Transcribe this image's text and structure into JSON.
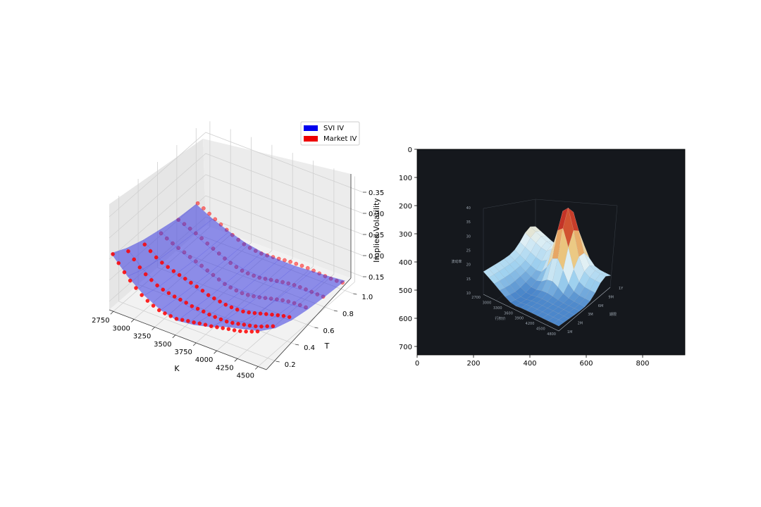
{
  "chart_data": [
    {
      "type": "surface3d",
      "xlabel": "K",
      "ylabel": "T",
      "zlabel": "Implied Volatility",
      "x_ticks": [
        "2750",
        "3000",
        "3250",
        "3500",
        "3750",
        "4000",
        "4250",
        "4500"
      ],
      "y_ticks": [
        "0.2",
        "0.4",
        "0.6",
        "0.8",
        "1.0"
      ],
      "z_ticks": [
        "0.15",
        "0.20",
        "0.25",
        "0.30",
        "0.35"
      ],
      "xlim": [
        2700,
        4600
      ],
      "ylim": [
        0.1,
        1.1
      ],
      "zlim": [
        0.13,
        0.38
      ],
      "legend": {
        "placement": "top-right",
        "entries": [
          {
            "label": "SVI IV",
            "color": "#0000ee"
          },
          {
            "label": "Market IV",
            "color": "#ee0000"
          }
        ]
      },
      "maturities": [
        0.12,
        0.28,
        0.45,
        0.62,
        0.8,
        1.0
      ],
      "strikes": [
        2700,
        2900,
        3100,
        3300,
        3500,
        3700,
        3900,
        4100,
        4300,
        4500
      ],
      "surface": {
        "name": "SVI IV",
        "color": "#3838e0",
        "iv": [
          [
            0.26,
            0.22,
            0.19,
            0.17,
            0.16,
            0.165,
            0.175,
            0.19,
            0.2,
            0.21
          ],
          [
            0.24,
            0.205,
            0.18,
            0.165,
            0.155,
            0.155,
            0.16,
            0.17,
            0.175,
            0.185
          ],
          [
            0.225,
            0.195,
            0.175,
            0.16,
            0.15,
            0.15,
            0.152,
            0.158,
            0.163,
            0.17
          ],
          [
            0.215,
            0.19,
            0.17,
            0.157,
            0.148,
            0.146,
            0.148,
            0.152,
            0.157,
            0.162
          ],
          [
            0.205,
            0.185,
            0.167,
            0.155,
            0.147,
            0.144,
            0.145,
            0.148,
            0.152,
            0.157
          ],
          [
            0.2,
            0.18,
            0.165,
            0.153,
            0.146,
            0.143,
            0.143,
            0.146,
            0.149,
            0.153
          ]
        ]
      },
      "market_points": {
        "name": "Market IV",
        "color": "#ff0000"
      }
    },
    {
      "type": "image",
      "xlim": [
        0,
        950
      ],
      "ylim": [
        0,
        730
      ],
      "x_ticks": [
        "0",
        "200",
        "400",
        "600",
        "800"
      ],
      "y_ticks": [
        "0",
        "100",
        "200",
        "300",
        "400",
        "500",
        "600",
        "700"
      ],
      "inner_labels": {
        "z_ticks": [
          "40",
          "35",
          "30",
          "25",
          "20",
          "15",
          "10"
        ],
        "x_ticks": [
          "2700",
          "3000",
          "3300",
          "3600",
          "3900",
          "4200",
          "4500",
          "4800"
        ],
        "y_ticks": [
          "1M",
          "2M",
          "3M",
          "6M",
          "9M",
          "1Y"
        ],
        "zlabel": "波动率",
        "xlabel": "行权价",
        "ylabel": "期限"
      }
    }
  ]
}
